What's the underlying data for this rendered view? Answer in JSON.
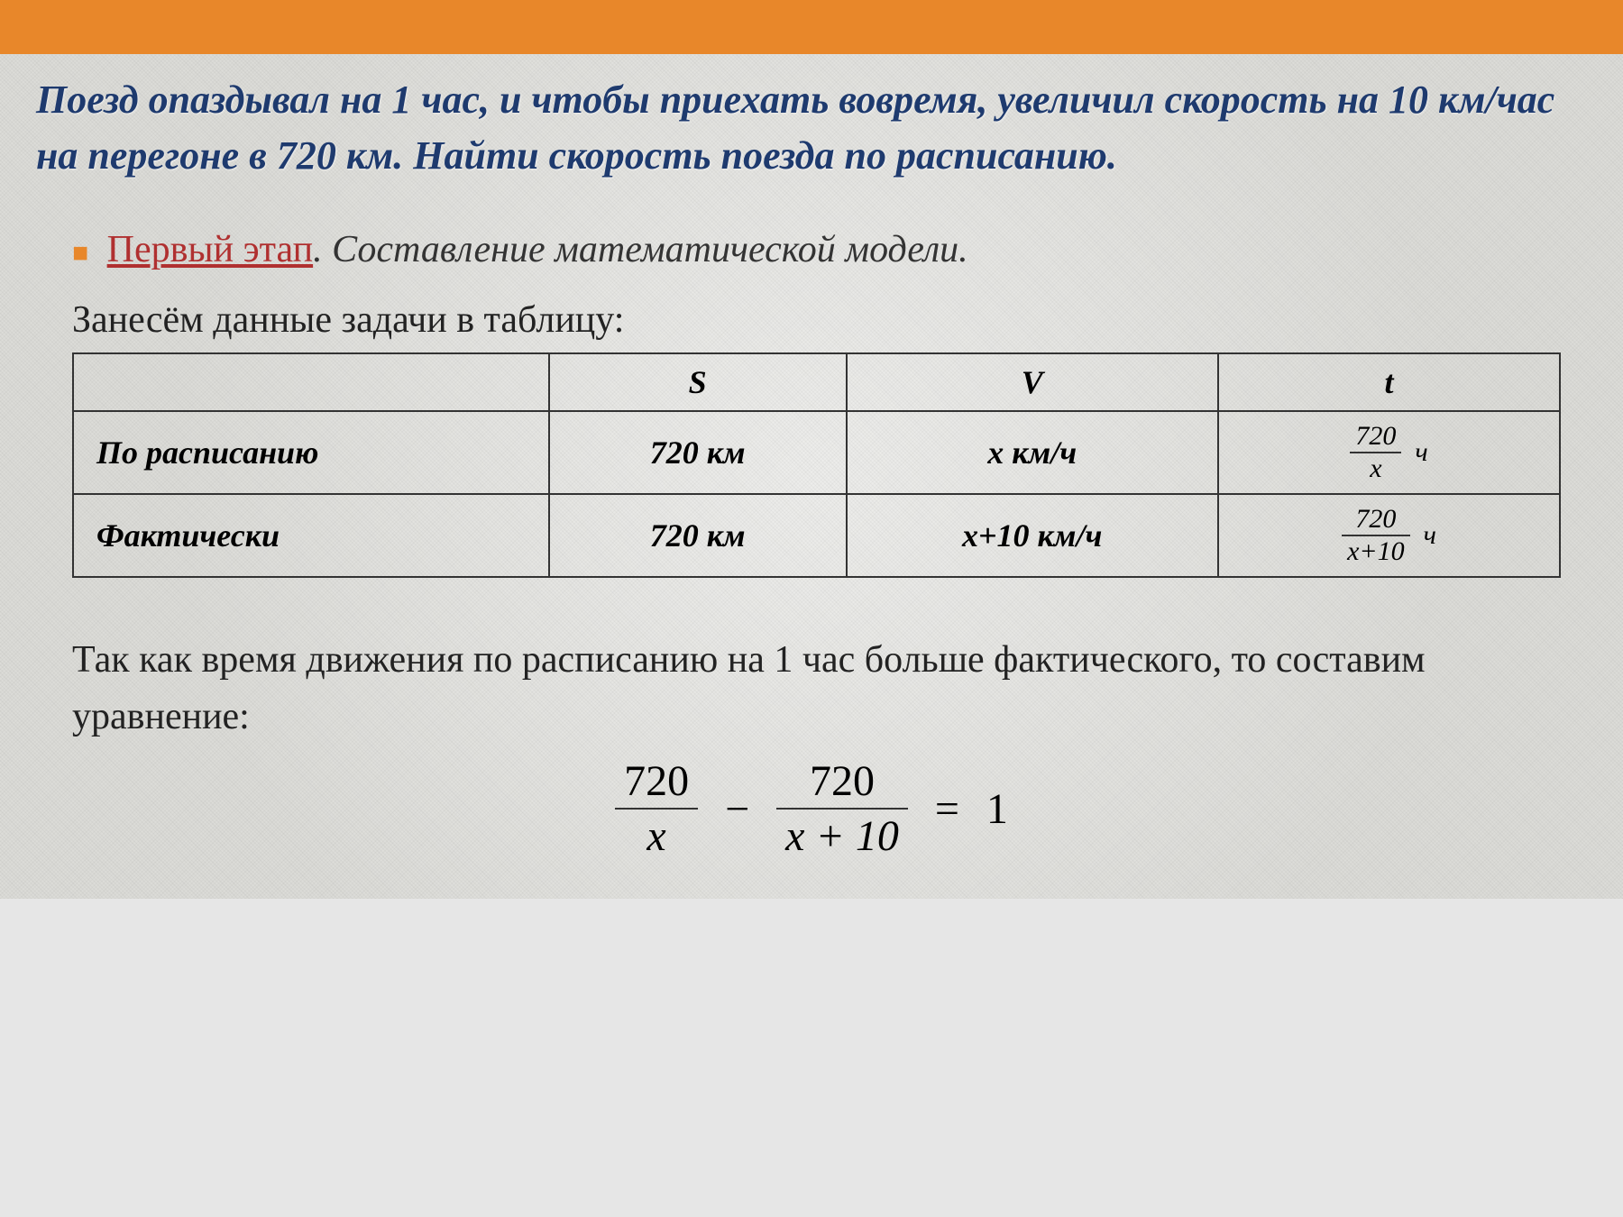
{
  "colors": {
    "top_bar": "#e8872a",
    "title_text": "#1e3a6e",
    "stage_label": "#b03030",
    "bullet": "#e8872a",
    "text": "#222222",
    "border": "#333333",
    "background": "#dcdcd8"
  },
  "title": "Поезд опаздывал на 1 час, и чтобы приехать вовремя, увеличил скорость на 10 км/час на перегоне в 720 км. Найти скорость поезда по расписанию.",
  "stage": {
    "label": "Первый этап",
    "desc": "Составление математической модели."
  },
  "intro": "Занесём данные задачи в таблицу:",
  "table": {
    "headers": {
      "s": "S",
      "v": "V",
      "t": "t"
    },
    "rows": [
      {
        "label": "По расписанию",
        "s": "720 км",
        "v": "x км/ч",
        "t_num": "720",
        "t_den": "x",
        "t_unit": "ч"
      },
      {
        "label": "Фактически",
        "s": "720 км",
        "v": "x+10  км/ч",
        "t_num": "720",
        "t_den": "x+10",
        "t_unit": "ч"
      }
    ]
  },
  "conclusion": "Так как время движения по расписанию на 1 час больше фактического, то составим уравнение:",
  "equation": {
    "frac1_num": "720",
    "frac1_den": "x",
    "op1": "−",
    "frac2_num": "720",
    "frac2_den": "x + 10",
    "op2": "=",
    "rhs": "1"
  }
}
